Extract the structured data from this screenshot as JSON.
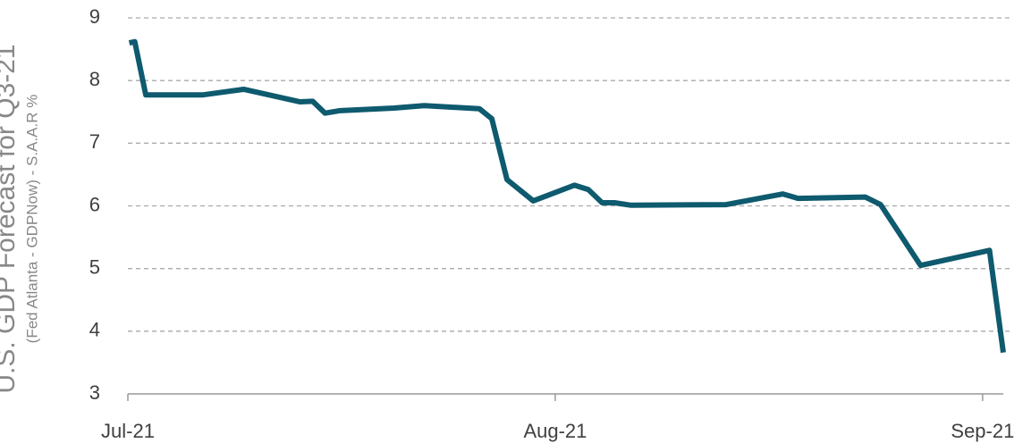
{
  "chart_data": {
    "type": "line",
    "ylabel": "U.S. GDP Forecast for Q3-21",
    "ylabel_sub": "(Fed Atlanta - GDPNow) - S.A.A.R %",
    "x": [
      0.1,
      0.5,
      1.3,
      5.4,
      8.4,
      12.5,
      13.4,
      14.3,
      15.4,
      19.3,
      21.5,
      25.5,
      26.4,
      27.5,
      29.4,
      32.4,
      33.4,
      34.4,
      35.3,
      36.5,
      43.4,
      47.5,
      48.6,
      53.5,
      54.6,
      57.5,
      62.5,
      63.5
    ],
    "series": [
      {
        "color": "#0e5a6e",
        "values": [
          8.6,
          8.62,
          7.77,
          7.77,
          7.86,
          7.66,
          7.67,
          7.48,
          7.52,
          7.56,
          7.6,
          7.55,
          7.39,
          6.42,
          6.08,
          6.33,
          6.26,
          6.05,
          6.05,
          6.01,
          6.02,
          6.19,
          6.12,
          6.14,
          6.02,
          5.05,
          5.29,
          3.66
        ]
      }
    ],
    "xlim": [
      0,
      63.5
    ],
    "xticks": [
      {
        "value": 0,
        "label": "Jul-21"
      },
      {
        "value": 31,
        "label": "Aug-21"
      },
      {
        "value": 62,
        "label": "Sep-21"
      }
    ],
    "ylim": [
      3,
      9
    ],
    "yticks": [
      3,
      4,
      5,
      6,
      7,
      8,
      9
    ],
    "grid": true
  }
}
